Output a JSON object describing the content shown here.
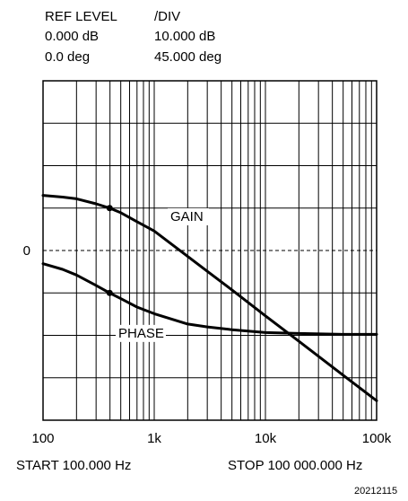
{
  "header": {
    "ref_level_label": "REF LEVEL",
    "div_label": "/DIV",
    "gain_ref": "0.000 dB",
    "gain_div": "10.000 dB",
    "phase_ref": "0.0 deg",
    "phase_div": "45.000 deg"
  },
  "footer": {
    "start_label": "START  100.000 Hz",
    "stop_label": "STOP  100 000.000 Hz",
    "figure_id": "20212115"
  },
  "colors": {
    "ink": "#000000",
    "background": "#ffffff"
  },
  "chart_data": {
    "type": "line",
    "x_scale": "log",
    "xlim": [
      100,
      100000
    ],
    "x_ticks": [
      100,
      1000,
      10000,
      100000
    ],
    "x_tick_labels": [
      "100",
      "1k",
      "10k",
      "100k"
    ],
    "y_divisions": 8,
    "y_zero_label": "0",
    "grid": true,
    "annotations": [
      "GAIN",
      "PHASE"
    ],
    "series": [
      {
        "name": "GAIN",
        "unit": "dB",
        "x": [
          100,
          150,
          200,
          300,
          397,
          500,
          700,
          1000,
          2000,
          3000,
          5000,
          10000,
          20000,
          50000,
          100000
        ],
        "values": [
          13.0,
          12.6,
          12.2,
          11.0,
          10.0,
          8.9,
          6.8,
          4.6,
          -1.4,
          -4.9,
          -9.3,
          -15.4,
          -21.4,
          -29.4,
          -35.4
        ]
      },
      {
        "name": "PHASE",
        "unit": "deg",
        "x": [
          100,
          150,
          200,
          300,
          397,
          500,
          700,
          1000,
          2000,
          3000,
          5000,
          10000,
          20000,
          50000,
          100000
        ],
        "values": [
          -14,
          -20,
          -26,
          -37,
          -45,
          -51,
          -60,
          -67,
          -78,
          -81,
          -84,
          -87,
          -88,
          -89,
          -89
        ]
      }
    ]
  }
}
